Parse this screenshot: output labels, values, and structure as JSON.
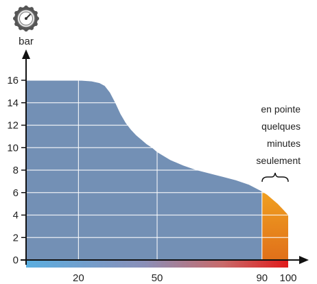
{
  "chart_data": {
    "type": "area",
    "title": "",
    "xlabel": "",
    "ylabel": "bar",
    "xlim": [
      0,
      100
    ],
    "ylim": [
      0,
      16
    ],
    "x_ticks": [
      20,
      50,
      90,
      100
    ],
    "y_ticks": [
      0,
      2,
      4,
      6,
      8,
      10,
      12,
      14,
      16
    ],
    "x_tick_labels": [
      "20",
      "50",
      "90",
      "100"
    ],
    "y_tick_labels": [
      "0",
      "2",
      "4",
      "6",
      "8",
      "10",
      "12",
      "14",
      "16"
    ],
    "grid": true,
    "legend": "none",
    "series": [
      {
        "color": "#7390b5",
        "x": [
          0,
          18,
          20,
          22,
          25,
          28,
          30,
          32,
          34,
          36,
          38,
          40,
          42,
          44,
          46,
          48,
          50,
          55,
          60,
          65,
          70,
          75,
          80,
          85,
          90
        ],
        "y": [
          16,
          16,
          16,
          15.95,
          15.9,
          15.75,
          15.5,
          14.9,
          14.0,
          13.0,
          12.2,
          11.6,
          11.1,
          10.7,
          10.3,
          10.0,
          9.6,
          8.9,
          8.4,
          8.0,
          7.7,
          7.4,
          7.1,
          6.7,
          6.1
        ]
      },
      {
        "color": "#f0a020",
        "x": [
          90,
          92,
          94,
          96,
          98,
          100
        ],
        "y": [
          6.1,
          5.8,
          5.4,
          5.0,
          4.5,
          4.0
        ]
      }
    ],
    "annotations": [
      {
        "text": [
          "en pointe",
          "quelques",
          "minutes",
          "seulement"
        ],
        "x_range": [
          90,
          100
        ]
      }
    ],
    "colors": {
      "main_fill": "#7390b5",
      "peak_fill_top": "#f0a020",
      "peak_fill_bottom": "#e0701a",
      "axis": "#111111",
      "gradient_start": "#5aaee0",
      "gradient_end": "#e01a1a"
    },
    "icons": [
      "pressure-gauge-icon"
    ]
  }
}
